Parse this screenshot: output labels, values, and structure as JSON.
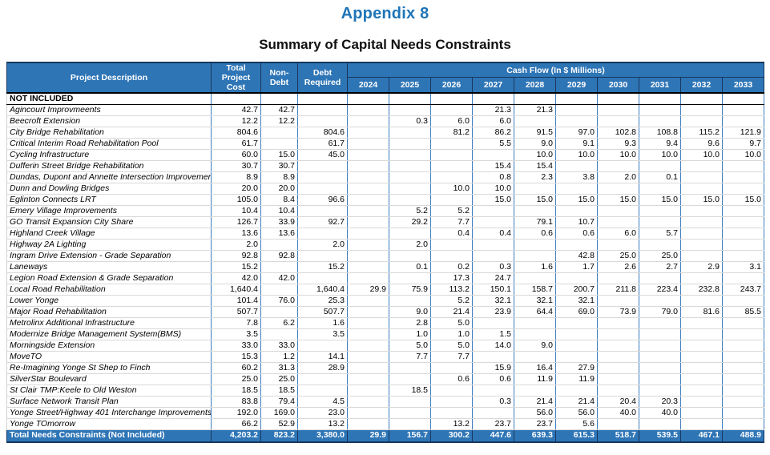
{
  "titles": {
    "appendix": "Appendix 8",
    "subtitle": "Summary of Capital Needs Constraints"
  },
  "colors": {
    "header_blue": "#2E75B6",
    "title_blue": "#1F75B8",
    "dark_border": "#17375E",
    "grid_line": "#D9D9D9",
    "column_line": "#3C7EBF"
  },
  "table": {
    "headers": {
      "project_description": "Project Description",
      "total_project_cost": "Total\nProject Cost",
      "non_debt": "Non-\nDebt",
      "debt_required": "Debt\nRequired",
      "cash_flow": "Cash Flow (In $ Millions)",
      "years": [
        "2024",
        "2025",
        "2026",
        "2027",
        "2028",
        "2029",
        "2030",
        "2031",
        "2032",
        "2033"
      ]
    },
    "section_label": "NOT INCLUDED",
    "rows": [
      {
        "name": "Agincourt Improvmeents",
        "total": "42.7",
        "non_debt": "42.7",
        "debt": "",
        "years": [
          "",
          "",
          "",
          "21.3",
          "21.3",
          "",
          "",
          "",
          "",
          ""
        ]
      },
      {
        "name": "Beecroft Extension",
        "total": "12.2",
        "non_debt": "12.2",
        "debt": "",
        "years": [
          "",
          "0.3",
          "6.0",
          "6.0",
          "",
          "",
          "",
          "",
          "",
          ""
        ]
      },
      {
        "name": "City Bridge Rehabilitation",
        "total": "804.6",
        "non_debt": "",
        "debt": "804.6",
        "years": [
          "",
          "",
          "81.2",
          "86.2",
          "91.5",
          "97.0",
          "102.8",
          "108.8",
          "115.2",
          "121.9"
        ]
      },
      {
        "name": "Critical Interim Road Rehabilitation Pool",
        "total": "61.7",
        "non_debt": "",
        "debt": "61.7",
        "years": [
          "",
          "",
          "",
          "5.5",
          "9.0",
          "9.1",
          "9.3",
          "9.4",
          "9.6",
          "9.7"
        ]
      },
      {
        "name": "Cycling Infrastructure",
        "total": "60.0",
        "non_debt": "15.0",
        "debt": "45.0",
        "years": [
          "",
          "",
          "",
          "",
          "10.0",
          "10.0",
          "10.0",
          "10.0",
          "10.0",
          "10.0"
        ]
      },
      {
        "name": "Dufferin Street Bridge Rehabilitation",
        "total": "30.7",
        "non_debt": "30.7",
        "debt": "",
        "years": [
          "",
          "",
          "",
          "15.4",
          "15.4",
          "",
          "",
          "",
          "",
          ""
        ]
      },
      {
        "name": "Dundas, Dupont and Annette Intersection Improvements",
        "total": "8.9",
        "non_debt": "8.9",
        "debt": "",
        "years": [
          "",
          "",
          "",
          "0.8",
          "2.3",
          "3.8",
          "2.0",
          "0.1",
          "",
          ""
        ]
      },
      {
        "name": "Dunn and Dowling Bridges",
        "total": "20.0",
        "non_debt": "20.0",
        "debt": "",
        "years": [
          "",
          "",
          "10.0",
          "10.0",
          "",
          "",
          "",
          "",
          "",
          ""
        ]
      },
      {
        "name": "Eglinton Connects LRT",
        "total": "105.0",
        "non_debt": "8.4",
        "debt": "96.6",
        "years": [
          "",
          "",
          "",
          "15.0",
          "15.0",
          "15.0",
          "15.0",
          "15.0",
          "15.0",
          "15.0"
        ]
      },
      {
        "name": "Emery Village Improvements",
        "total": "10.4",
        "non_debt": "10.4",
        "debt": "",
        "years": [
          "",
          "5.2",
          "5.2",
          "",
          "",
          "",
          "",
          "",
          "",
          ""
        ]
      },
      {
        "name": "GO Transit Expansion City Share",
        "total": "126.7",
        "non_debt": "33.9",
        "debt": "92.7",
        "years": [
          "",
          "29.2",
          "7.7",
          "",
          "79.1",
          "10.7",
          "",
          "",
          "",
          ""
        ]
      },
      {
        "name": "Highland Creek Village",
        "total": "13.6",
        "non_debt": "13.6",
        "debt": "",
        "years": [
          "",
          "",
          "0.4",
          "0.4",
          "0.6",
          "0.6",
          "6.0",
          "5.7",
          "",
          ""
        ]
      },
      {
        "name": "Highway 2A Lighting",
        "total": "2.0",
        "non_debt": "",
        "debt": "2.0",
        "years": [
          "",
          "2.0",
          "",
          "",
          "",
          "",
          "",
          "",
          "",
          ""
        ]
      },
      {
        "name": "Ingram Drive Extension - Grade Separation",
        "total": "92.8",
        "non_debt": "92.8",
        "debt": "",
        "years": [
          "",
          "",
          "",
          "",
          "",
          "42.8",
          "25.0",
          "25.0",
          "",
          ""
        ]
      },
      {
        "name": "Laneways",
        "total": "15.2",
        "non_debt": "",
        "debt": "15.2",
        "years": [
          "",
          "0.1",
          "0.2",
          "0.3",
          "1.6",
          "1.7",
          "2.6",
          "2.7",
          "2.9",
          "3.1"
        ]
      },
      {
        "name": "Legion Road Extension & Grade Separation",
        "total": "42.0",
        "non_debt": "42.0",
        "debt": "",
        "years": [
          "",
          "",
          "17.3",
          "24.7",
          "",
          "",
          "",
          "",
          "",
          ""
        ]
      },
      {
        "name": "Local Road Rehabilitation",
        "total": "1,640.4",
        "non_debt": "",
        "debt": "1,640.4",
        "years": [
          "29.9",
          "75.9",
          "113.2",
          "150.1",
          "158.7",
          "200.7",
          "211.8",
          "223.4",
          "232.8",
          "243.7"
        ]
      },
      {
        "name": "Lower Yonge",
        "total": "101.4",
        "non_debt": "76.0",
        "debt": "25.3",
        "years": [
          "",
          "",
          "5.2",
          "32.1",
          "32.1",
          "32.1",
          "",
          "",
          "",
          ""
        ]
      },
      {
        "name": "Major Road Rehabilitation",
        "total": "507.7",
        "non_debt": "",
        "debt": "507.7",
        "years": [
          "",
          "9.0",
          "21.4",
          "23.9",
          "64.4",
          "69.0",
          "73.9",
          "79.0",
          "81.6",
          "85.5"
        ]
      },
      {
        "name": "Metrolinx Additional Infrastructure",
        "total": "7.8",
        "non_debt": "6.2",
        "debt": "1.6",
        "years": [
          "",
          "2.8",
          "5.0",
          "",
          "",
          "",
          "",
          "",
          "",
          ""
        ]
      },
      {
        "name": "Modernize Bridge Management System(BMS)",
        "total": "3.5",
        "non_debt": "",
        "debt": "3.5",
        "years": [
          "",
          "1.0",
          "1.0",
          "1.5",
          "",
          "",
          "",
          "",
          "",
          ""
        ]
      },
      {
        "name": "Morningside Extension",
        "total": "33.0",
        "non_debt": "33.0",
        "debt": "",
        "years": [
          "",
          "5.0",
          "5.0",
          "14.0",
          "9.0",
          "",
          "",
          "",
          "",
          ""
        ]
      },
      {
        "name": "MoveTO",
        "total": "15.3",
        "non_debt": "1.2",
        "debt": "14.1",
        "years": [
          "",
          "7.7",
          "7.7",
          "",
          "",
          "",
          "",
          "",
          "",
          ""
        ]
      },
      {
        "name": "Re-Imagining Yonge St Shep to Finch",
        "total": "60.2",
        "non_debt": "31.3",
        "debt": "28.9",
        "years": [
          "",
          "",
          "",
          "15.9",
          "16.4",
          "27.9",
          "",
          "",
          "",
          ""
        ]
      },
      {
        "name": "SilverStar Boulevard",
        "total": "25.0",
        "non_debt": "25.0",
        "debt": "",
        "years": [
          "",
          "",
          "0.6",
          "0.6",
          "11.9",
          "11.9",
          "",
          "",
          "",
          ""
        ]
      },
      {
        "name": "St Clair TMP:Keele to Old Weston",
        "total": "18.5",
        "non_debt": "18.5",
        "debt": "",
        "years": [
          "",
          "18.5",
          "",
          "",
          "",
          "",
          "",
          "",
          "",
          ""
        ]
      },
      {
        "name": "Surface Network Transit Plan",
        "total": "83.8",
        "non_debt": "79.4",
        "debt": "4.5",
        "years": [
          "",
          "",
          "",
          "0.3",
          "21.4",
          "21.4",
          "20.4",
          "20.3",
          "",
          ""
        ]
      },
      {
        "name": "Yonge Street/Highway 401 Interchange Improvements",
        "total": "192.0",
        "non_debt": "169.0",
        "debt": "23.0",
        "years": [
          "",
          "",
          "",
          "",
          "56.0",
          "56.0",
          "40.0",
          "40.0",
          "",
          ""
        ]
      },
      {
        "name": "Yonge TOmorrow",
        "total": "66.2",
        "non_debt": "52.9",
        "debt": "13.2",
        "years": [
          "",
          "",
          "13.2",
          "23.7",
          "23.7",
          "5.6",
          "",
          "",
          "",
          ""
        ]
      }
    ],
    "total_row": {
      "label": "Total Needs Constraints (Not Included)",
      "total": "4,203.2",
      "non_debt": "823.2",
      "debt": "3,380.0",
      "years": [
        "29.9",
        "156.7",
        "300.2",
        "447.6",
        "639.3",
        "615.3",
        "518.7",
        "539.5",
        "467.1",
        "488.9"
      ]
    }
  }
}
